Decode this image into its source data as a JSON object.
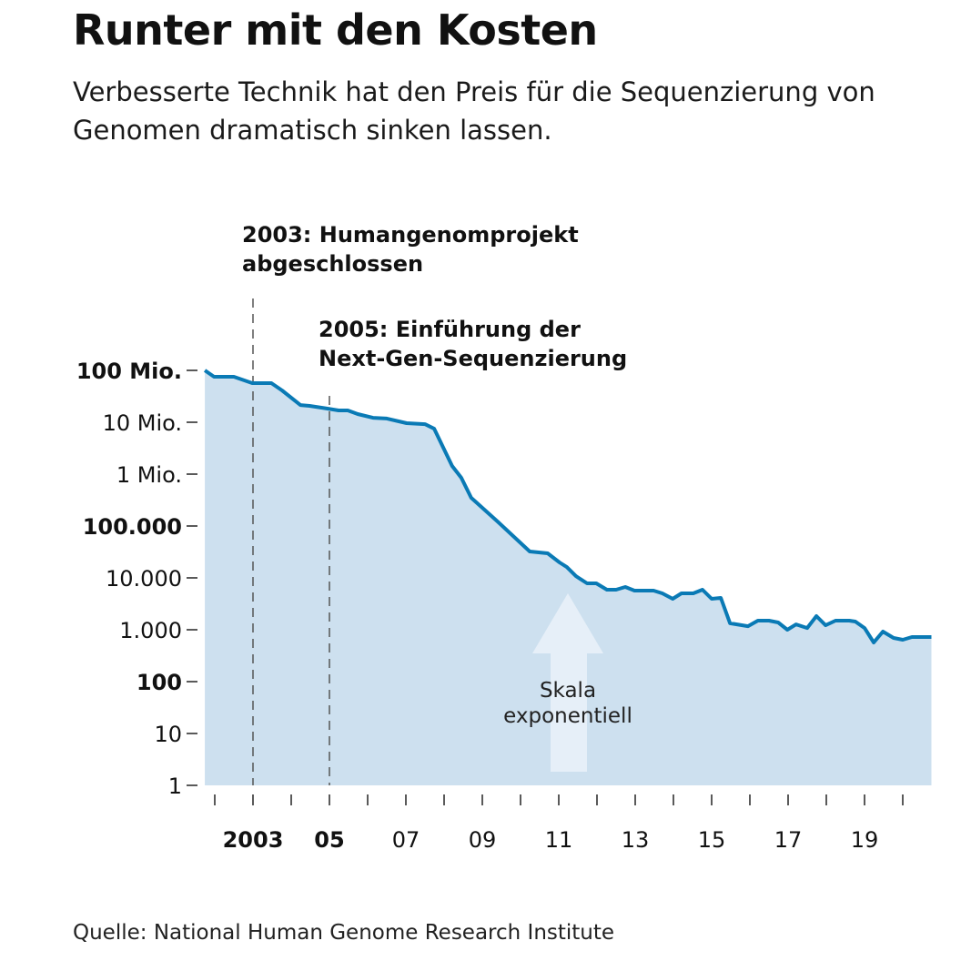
{
  "header": {
    "title": "Runter mit den Kosten",
    "subtitle": "Verbesserte Technik hat den Preis für die Sequenzierung von Genomen dramatisch sinken lassen."
  },
  "footer": {
    "source": "Quelle: National Human Genome Research Institute"
  },
  "chart_data": {
    "type": "area",
    "title": "Runter mit den Kosten",
    "yscale": "log",
    "ylim": [
      1,
      100000000
    ],
    "xlim": [
      2001.7,
      2020.75
    ],
    "grid": false,
    "colors": {
      "line": "#0a7ab5",
      "fill": "#cde0ef",
      "arrow": "#e6eff8"
    },
    "y_ticks": [
      {
        "value": 1,
        "label": "1",
        "bold": false
      },
      {
        "value": 10,
        "label": "10",
        "bold": false
      },
      {
        "value": 100,
        "label": "100",
        "bold": true
      },
      {
        "value": 1000,
        "label": "1.000",
        "bold": false
      },
      {
        "value": 10000,
        "label": "10.000",
        "bold": false
      },
      {
        "value": 100000,
        "label": "100.000",
        "bold": true
      },
      {
        "value": 1000000,
        "label": "1 Mio.",
        "bold": false
      },
      {
        "value": 10000000,
        "label": "10 Mio.",
        "bold": false
      },
      {
        "value": 100000000,
        "label": "100 Mio.",
        "bold": true
      }
    ],
    "x_ticks": [
      2002,
      2003,
      2004,
      2005,
      2006,
      2007,
      2008,
      2009,
      2010,
      2011,
      2012,
      2013,
      2014,
      2015,
      2016,
      2017,
      2018,
      2019,
      2020
    ],
    "x_tick_labels": [
      {
        "value": 2003,
        "label": "2003",
        "bold": true
      },
      {
        "value": 2005,
        "label": "05",
        "bold": true
      },
      {
        "value": 2007,
        "label": "07",
        "bold": false
      },
      {
        "value": 2009,
        "label": "09",
        "bold": false
      },
      {
        "value": 2011,
        "label": "11",
        "bold": false
      },
      {
        "value": 2013,
        "label": "13",
        "bold": false
      },
      {
        "value": 2015,
        "label": "15",
        "bold": false
      },
      {
        "value": 2017,
        "label": "17",
        "bold": false
      },
      {
        "value": 2019,
        "label": "19",
        "bold": false
      }
    ],
    "annotations": [
      {
        "x": 2003,
        "lines": [
          "2003: Humangenomprojekt",
          "abgeschlossen"
        ]
      },
      {
        "x": 2005,
        "lines": [
          "2005: Einführung der",
          "Next-Gen-Sequenzierung"
        ]
      }
    ],
    "scale_note": [
      "Skala",
      "exponentiell"
    ],
    "series": [
      {
        "x": [
          2001.74,
          2001.98,
          2002.5,
          2002.98,
          2003.48,
          2003.76,
          2004.24,
          2004.48,
          2004.95,
          2005.24,
          2005.48,
          2005.74,
          2006.14,
          2006.5,
          2007.02,
          2007.5,
          2007.74,
          2008.21,
          2008.45,
          2008.71,
          2009.4,
          2010.24,
          2010.71,
          2011.02,
          2011.21,
          2011.45,
          2011.74,
          2011.98,
          2012.26,
          2012.5,
          2012.74,
          2012.98,
          2013.48,
          2013.71,
          2013.98,
          2014.21,
          2014.52,
          2014.76,
          2015.0,
          2015.24,
          2015.48,
          2015.95,
          2016.21,
          2016.5,
          2016.74,
          2016.98,
          2017.21,
          2017.5,
          2017.74,
          2017.98,
          2018.24,
          2018.6,
          2018.76,
          2019.0,
          2019.24,
          2019.48,
          2019.76,
          2020.0,
          2020.24,
          2020.71
        ],
        "y": [
          100000000,
          75400000,
          75400000,
          56800000,
          56800000,
          41100000,
          21500000,
          20700000,
          18300000,
          16900000,
          16900000,
          14400000,
          12200000,
          11800000,
          9600000,
          9200000,
          7500000,
          1440000,
          851000,
          350000,
          122000,
          32300,
          29800,
          19900,
          16200,
          10800,
          7850,
          7850,
          5920,
          5920,
          6680,
          5680,
          5680,
          5030,
          3950,
          5030,
          5030,
          5920,
          3950,
          4110,
          1330,
          1170,
          1500,
          1500,
          1380,
          1000,
          1270,
          1080,
          1830,
          1220,
          1500,
          1500,
          1440,
          1080,
          568,
          923,
          695,
          641,
          724,
          724
        ]
      }
    ]
  }
}
